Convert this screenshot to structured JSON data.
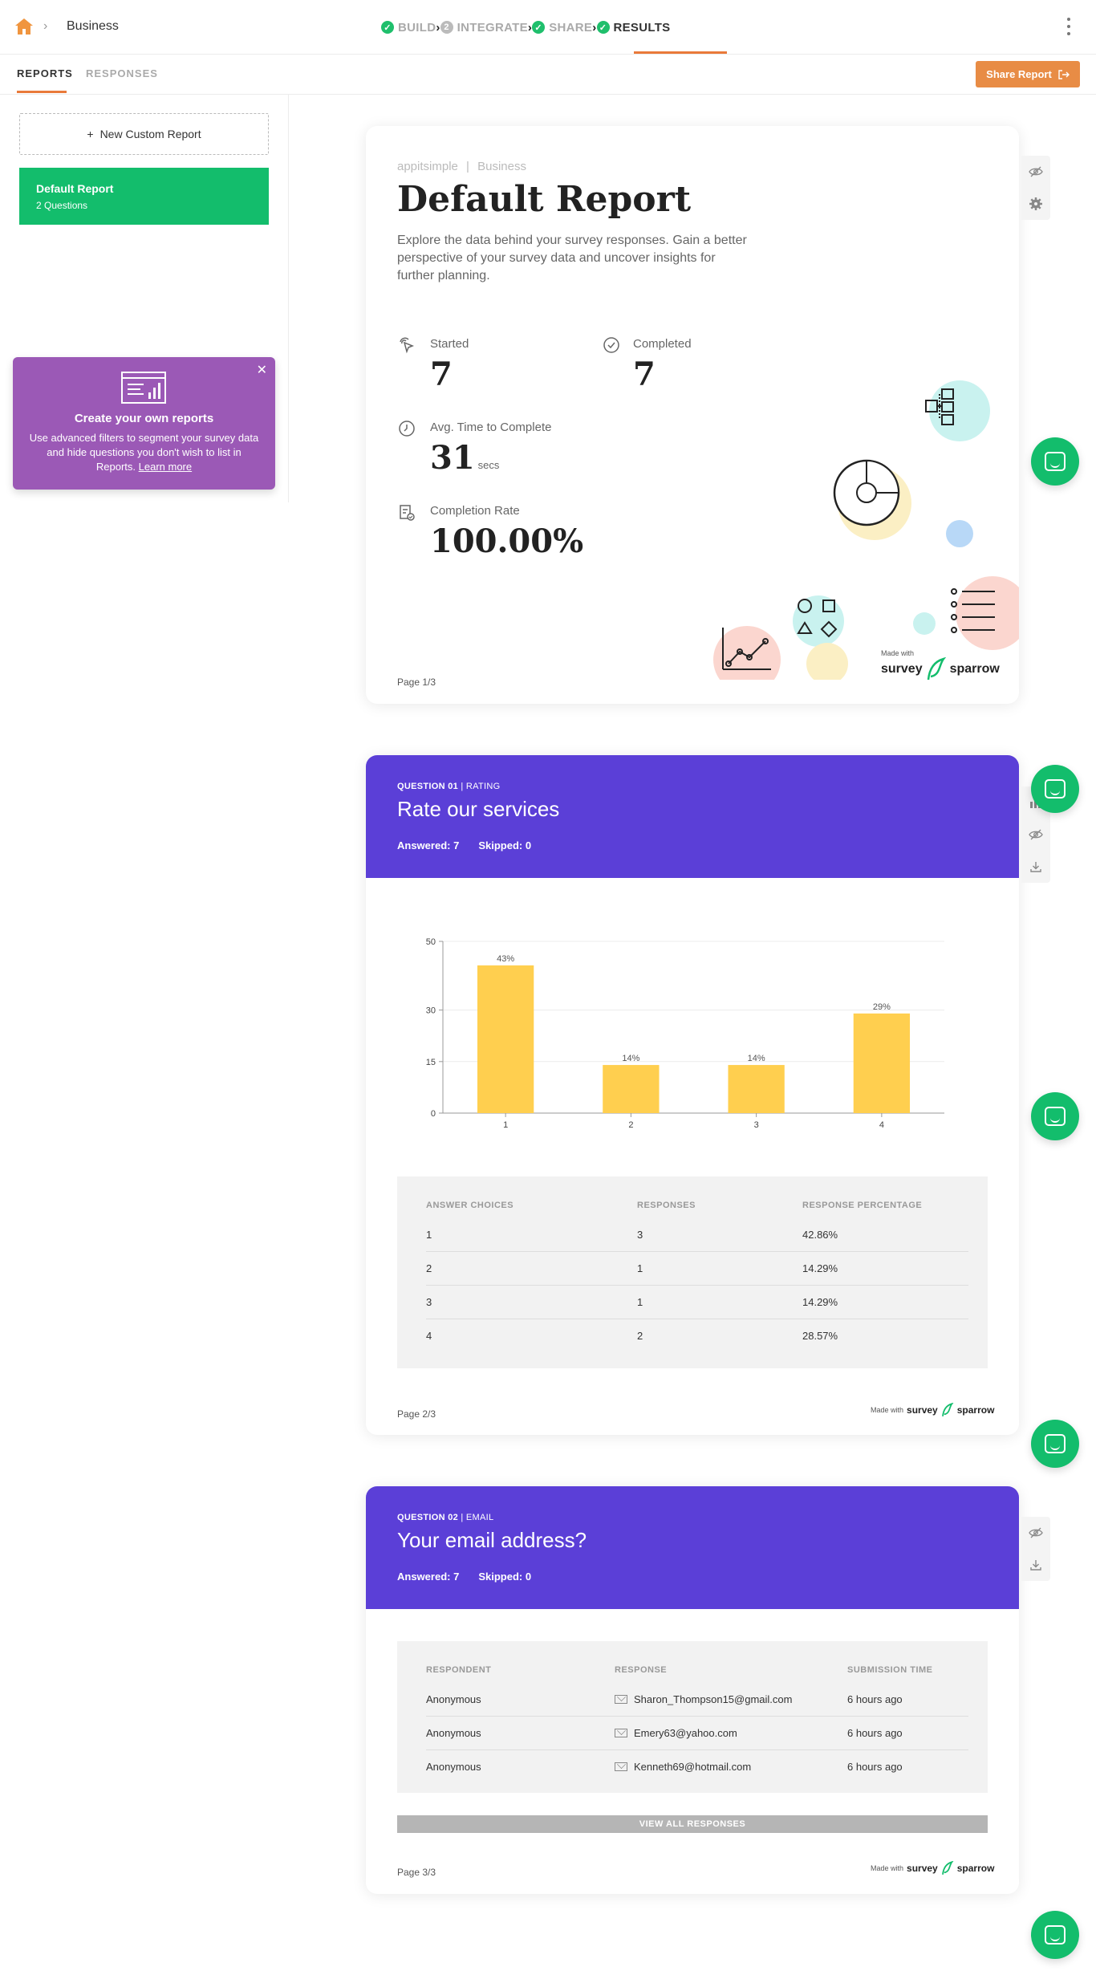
{
  "topbar": {
    "breadcrumb": "Business",
    "steps": [
      {
        "label": "BUILD",
        "state": "done"
      },
      {
        "label": "INTEGRATE",
        "state": "number",
        "num": "2"
      },
      {
        "label": "SHARE",
        "state": "done"
      },
      {
        "label": "RESULTS",
        "state": "active"
      }
    ]
  },
  "subbar": {
    "tabs": [
      "REPORTS",
      "RESPONSES"
    ],
    "share_label": "Share Report"
  },
  "sidebar": {
    "new_report": "New Custom Report",
    "default_report": {
      "title": "Default Report",
      "subtitle": "2 Questions"
    },
    "promo": {
      "heading": "Create your own reports",
      "body": "Use advanced filters to segment your survey data and hide questions you don't wish to list in Reports.",
      "link": "Learn more"
    }
  },
  "report": {
    "brand": "appitsimple",
    "brand_sep": "|",
    "brand_project": "Business",
    "title": "Default Report",
    "description": "Explore the data behind your survey responses. Gain a better perspective of your survey data and uncover insights for further planning.",
    "stats": {
      "started": {
        "label": "Started",
        "value": "7"
      },
      "completed": {
        "label": "Completed",
        "value": "7"
      },
      "avg_time": {
        "label": "Avg. Time to Complete",
        "value": "31",
        "unit": "secs"
      },
      "completion": {
        "label": "Completion Rate",
        "value": "100.00%"
      }
    },
    "page": "Page 1/3",
    "made_with": "Made with",
    "brand_logo": {
      "left": "survey",
      "right": "sparrow"
    }
  },
  "question1": {
    "kicker_num": "QUESTION 01",
    "kicker_type": "| RATING",
    "title": "Rate our services",
    "answered_label": "Answered:",
    "answered": "7",
    "skipped_label": "Skipped:",
    "skipped": "0",
    "table": {
      "headers": [
        "ANSWER CHOICES",
        "RESPONSES",
        "RESPONSE PERCENTAGE"
      ],
      "rows": [
        [
          "1",
          "3",
          "42.86%"
        ],
        [
          "2",
          "1",
          "14.29%"
        ],
        [
          "3",
          "1",
          "14.29%"
        ],
        [
          "4",
          "2",
          "28.57%"
        ]
      ]
    },
    "page": "Page 2/3"
  },
  "chart_data": {
    "type": "bar",
    "categories": [
      "1",
      "2",
      "3",
      "4"
    ],
    "values": [
      43,
      14,
      14,
      29
    ],
    "labels": [
      "43%",
      "14%",
      "14%",
      "29%"
    ],
    "yticks": [
      0,
      15,
      30,
      50
    ],
    "ylim": [
      0,
      50
    ],
    "bar_color": "#ffcf4f",
    "grid": true
  },
  "question2": {
    "kicker_num": "QUESTION 02",
    "kicker_type": "| EMAIL",
    "title": "Your email address?",
    "answered_label": "Answered:",
    "answered": "7",
    "skipped_label": "Skipped:",
    "skipped": "0",
    "table": {
      "headers": [
        "RESPONDENT",
        "RESPONSE",
        "SUBMISSION TIME"
      ],
      "rows": [
        [
          "Anonymous",
          "Sharon_Thompson15@gmail.com",
          "6 hours ago"
        ],
        [
          "Anonymous",
          "Emery63@yahoo.com",
          "6 hours ago"
        ],
        [
          "Anonymous",
          "Kenneth69@hotmail.com",
          "6 hours ago"
        ]
      ]
    },
    "view_all": "VIEW ALL RESPONSES",
    "page": "Page 3/3"
  },
  "colors": {
    "accent": "#e97a3a",
    "primary_green": "#13bd6c",
    "question_purple": "#5b3fd7",
    "promo_purple": "#9b59b6"
  }
}
